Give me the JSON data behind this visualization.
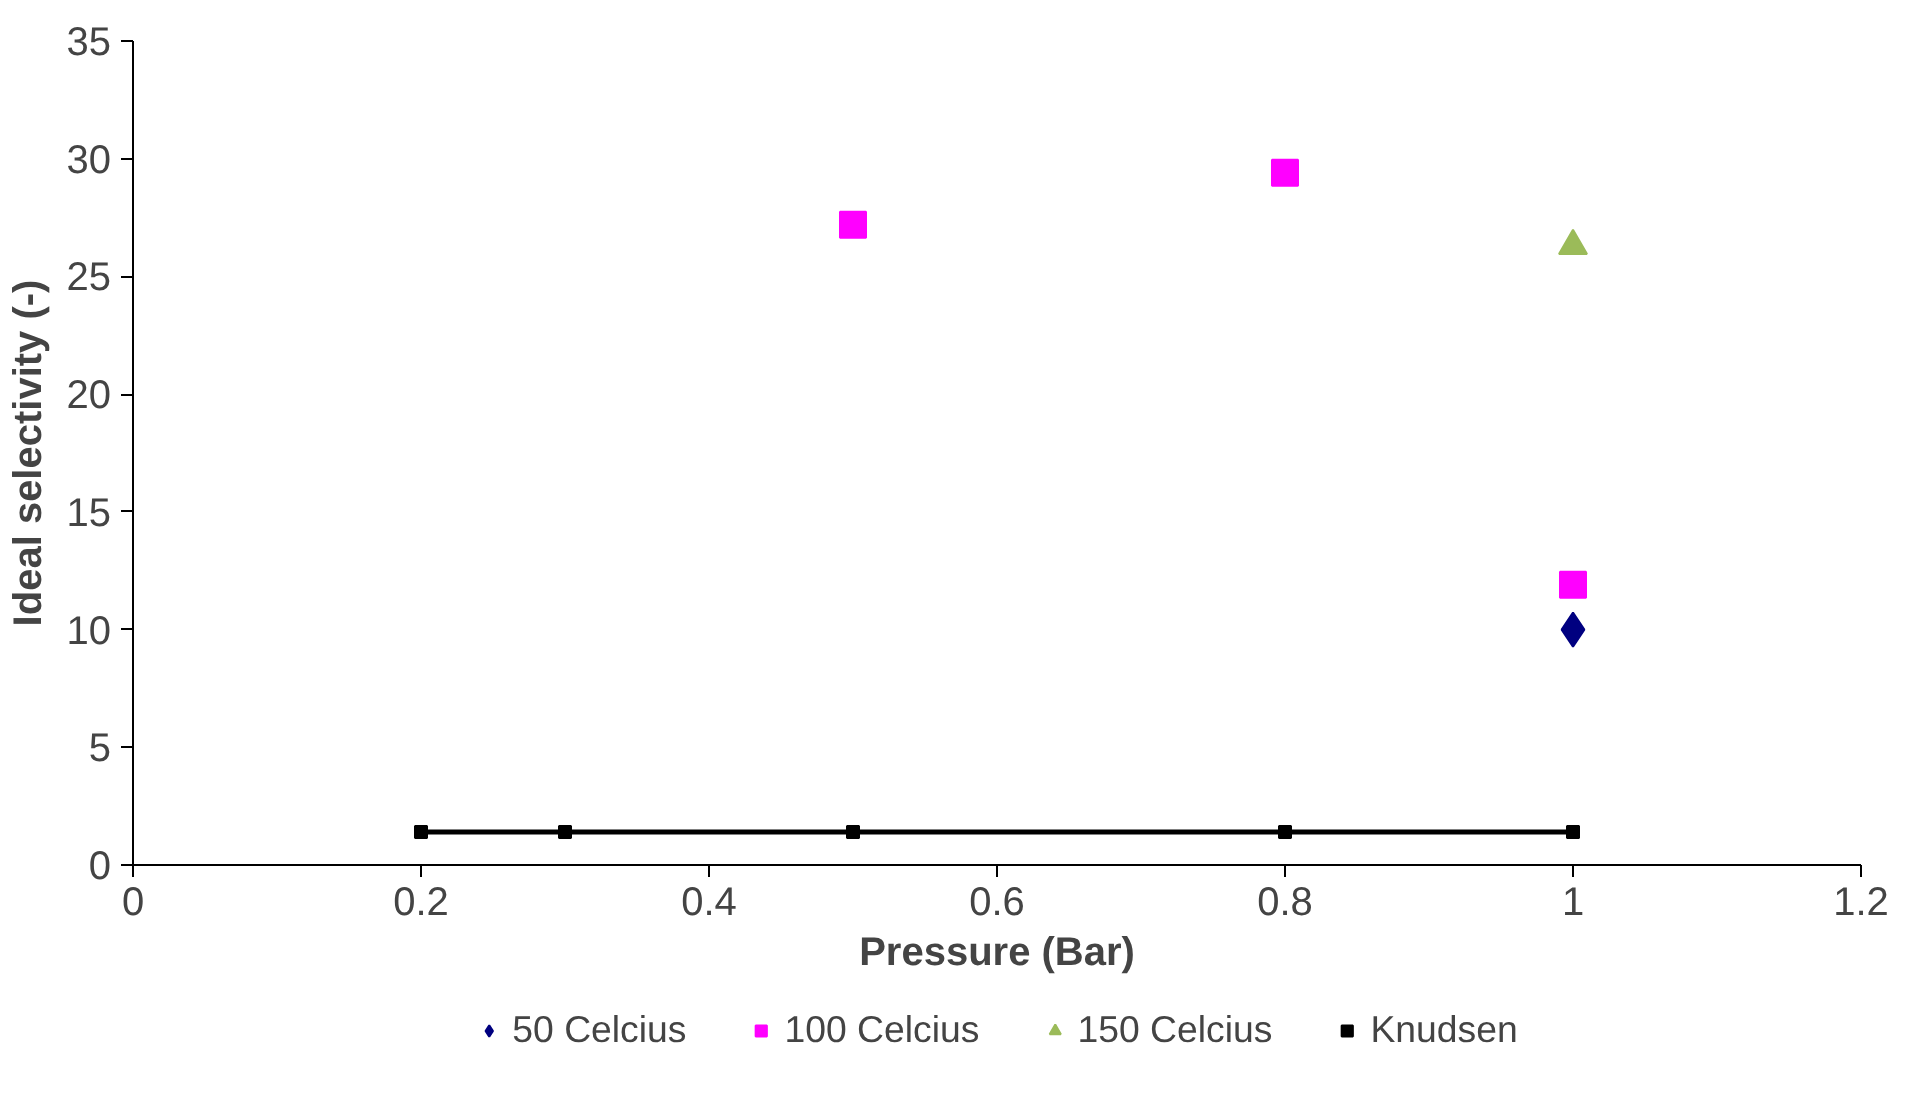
{
  "chart_data": {
    "type": "scatter",
    "xlabel": "Pressure (Bar)",
    "ylabel": "Ideal selectivity (-)",
    "xlim": [
      0,
      1.2
    ],
    "xticks": [
      0,
      0.2,
      0.4,
      0.6,
      0.8,
      1,
      1.2
    ],
    "ylim": [
      0,
      35
    ],
    "yticks": [
      0,
      5,
      10,
      15,
      20,
      25,
      30,
      35
    ],
    "grid": false,
    "legend": "bottom",
    "series": [
      {
        "name": "50 Celcius",
        "color": "#000080",
        "marker": "diamond",
        "x": [
          1
        ],
        "values": [
          10
        ]
      },
      {
        "name": "100 Celcius",
        "color": "#ff00ff",
        "marker": "square",
        "x": [
          0.5,
          0.8,
          1
        ],
        "values": [
          27.2,
          29.4,
          11.9
        ]
      },
      {
        "name": "150 Celcius",
        "color": "#9bbb59",
        "marker": "triangle",
        "x": [
          1
        ],
        "values": [
          26.3
        ]
      },
      {
        "name": "Knudsen",
        "type": "line",
        "color": "#000000",
        "marker": "square",
        "x": [
          0.2,
          0.3,
          0.5,
          0.8,
          1
        ],
        "values": [
          1.4,
          1.4,
          1.4,
          1.4,
          1.4
        ]
      }
    ]
  }
}
